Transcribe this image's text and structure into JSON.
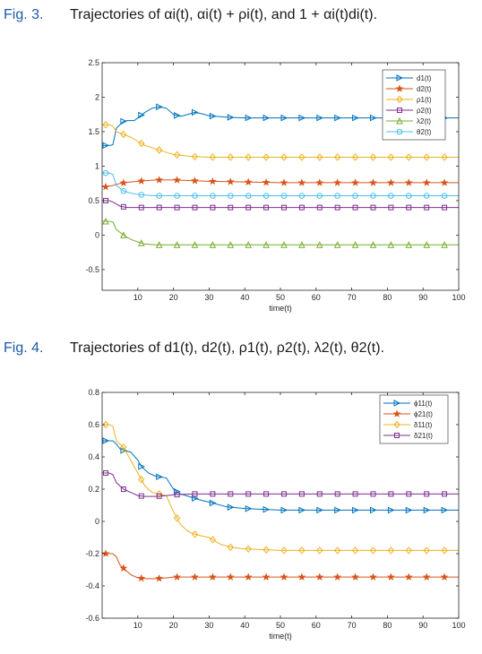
{
  "captions": [
    {
      "number": "Fig. 3.",
      "text": "Trajectories of αi(t), αi(t) + ρi(t), and 1 + αi(t)di(t)."
    },
    {
      "number": "Fig. 4.",
      "text": "Trajectories of d1(t), d2(t), ρ1(t), ρ2(t), λ2(t), θ2(t)."
    }
  ],
  "chart_data": [
    {
      "type": "line",
      "title": "",
      "xlabel": "time(t)",
      "ylabel": "",
      "xlim": [
        0,
        100
      ],
      "ylim": [
        -0.8,
        2.5
      ],
      "xticks": [
        "10",
        "20",
        "30",
        "40",
        "50",
        "60",
        "70",
        "80",
        "90",
        "100"
      ],
      "yticks": [
        "-0.5",
        "0",
        "0.5",
        "1",
        "1.5",
        "2",
        "2.5"
      ],
      "ytick_values": [
        -0.5,
        0,
        0.5,
        1,
        1.5,
        2,
        2.5
      ],
      "legend_position": "top-right",
      "grid": false,
      "series": [
        {
          "name": "d1(t)",
          "color": "#0072bd",
          "marker": "triangle-right",
          "x": [
            0,
            1,
            2,
            3,
            4,
            5,
            6,
            7,
            8,
            9,
            10,
            12,
            14,
            16,
            18,
            20,
            22,
            24,
            26,
            28,
            30,
            35,
            40,
            50,
            60,
            70,
            80,
            90,
            100
          ],
          "y": [
            1.3,
            1.3,
            1.3,
            1.31,
            1.55,
            1.6,
            1.65,
            1.66,
            1.66,
            1.66,
            1.7,
            1.78,
            1.84,
            1.86,
            1.84,
            1.75,
            1.72,
            1.75,
            1.78,
            1.76,
            1.73,
            1.71,
            1.7,
            1.7,
            1.7,
            1.7,
            1.7,
            1.7,
            1.7
          ],
          "marker_x": [
            1,
            6,
            11,
            16,
            21,
            26,
            31,
            36,
            41,
            46,
            51,
            56,
            61,
            66,
            71,
            76,
            81,
            86,
            91,
            96
          ]
        },
        {
          "name": "d2(t)",
          "color": "#d95319",
          "marker": "star",
          "x": [
            0,
            1,
            3,
            5,
            8,
            10,
            15,
            20,
            25,
            30,
            40,
            50,
            60,
            70,
            80,
            90,
            100
          ],
          "y": [
            0.7,
            0.7,
            0.72,
            0.75,
            0.77,
            0.78,
            0.8,
            0.8,
            0.79,
            0.78,
            0.77,
            0.76,
            0.76,
            0.76,
            0.76,
            0.76,
            0.76
          ],
          "marker_x": [
            1,
            6,
            11,
            16,
            21,
            26,
            31,
            36,
            41,
            46,
            51,
            56,
            61,
            66,
            71,
            76,
            81,
            86,
            91,
            96
          ]
        },
        {
          "name": "ρ1(t)",
          "color": "#edb120",
          "marker": "diamond",
          "x": [
            0,
            1,
            2,
            3,
            4,
            5,
            6,
            8,
            10,
            12,
            15,
            18,
            20,
            25,
            30,
            40,
            50,
            60,
            70,
            80,
            90,
            100
          ],
          "y": [
            1.6,
            1.6,
            1.6,
            1.58,
            1.5,
            1.48,
            1.46,
            1.42,
            1.36,
            1.3,
            1.25,
            1.2,
            1.17,
            1.14,
            1.13,
            1.13,
            1.13,
            1.13,
            1.13,
            1.13,
            1.13,
            1.13
          ],
          "marker_x": [
            1,
            6,
            11,
            16,
            21,
            26,
            31,
            36,
            41,
            46,
            51,
            56,
            61,
            66,
            71,
            76,
            81,
            86,
            91,
            96
          ]
        },
        {
          "name": "ρ2(t)",
          "color": "#7e2f8e",
          "marker": "square",
          "x": [
            0,
            1,
            2,
            3,
            5,
            7,
            10,
            15,
            20,
            30,
            50,
            70,
            100
          ],
          "y": [
            0.5,
            0.5,
            0.5,
            0.48,
            0.42,
            0.4,
            0.4,
            0.4,
            0.4,
            0.4,
            0.4,
            0.4,
            0.4
          ],
          "marker_x": [
            1,
            6,
            11,
            16,
            21,
            26,
            31,
            36,
            41,
            46,
            51,
            56,
            61,
            66,
            71,
            76,
            81,
            86,
            91,
            96
          ]
        },
        {
          "name": "λ2(t)",
          "color": "#77ac30",
          "marker": "triangle-up",
          "x": [
            0,
            1,
            2,
            3,
            4,
            5,
            6,
            8,
            10,
            12,
            15,
            20,
            25,
            30,
            40,
            50,
            60,
            70,
            80,
            90,
            100
          ],
          "y": [
            0.2,
            0.2,
            0.2,
            0.19,
            0.08,
            0.04,
            0.0,
            -0.06,
            -0.1,
            -0.13,
            -0.14,
            -0.14,
            -0.14,
            -0.14,
            -0.14,
            -0.14,
            -0.14,
            -0.14,
            -0.14,
            -0.14,
            -0.14
          ],
          "marker_x": [
            1,
            6,
            11,
            16,
            21,
            26,
            31,
            36,
            41,
            46,
            51,
            56,
            61,
            66,
            71,
            76,
            81,
            86,
            91,
            96
          ]
        },
        {
          "name": "θ2(t)",
          "color": "#4dbeee",
          "marker": "circle",
          "x": [
            0,
            1,
            2,
            3,
            4,
            5,
            6,
            8,
            10,
            12,
            15,
            20,
            25,
            30,
            40,
            50,
            60,
            70,
            80,
            90,
            100
          ],
          "y": [
            0.9,
            0.9,
            0.9,
            0.88,
            0.72,
            0.68,
            0.64,
            0.61,
            0.59,
            0.58,
            0.57,
            0.57,
            0.57,
            0.57,
            0.57,
            0.57,
            0.57,
            0.57,
            0.57,
            0.57,
            0.57
          ],
          "marker_x": [
            1,
            6,
            11,
            16,
            21,
            26,
            31,
            36,
            41,
            46,
            51,
            56,
            61,
            66,
            71,
            76,
            81,
            86,
            91,
            96
          ]
        }
      ]
    },
    {
      "type": "line",
      "title": "",
      "xlabel": "time(t)",
      "ylabel": "",
      "xlim": [
        0,
        100
      ],
      "ylim": [
        -0.6,
        0.8
      ],
      "xticks": [
        "10",
        "20",
        "30",
        "40",
        "50",
        "60",
        "70",
        "80",
        "90",
        "100"
      ],
      "yticks": [
        "-0.6",
        "-0.4",
        "-0.2",
        "0",
        "0.2",
        "0.4",
        "0.6",
        "0.8"
      ],
      "ytick_values": [
        -0.6,
        -0.4,
        -0.2,
        0,
        0.2,
        0.4,
        0.6,
        0.8
      ],
      "legend_position": "top-right",
      "grid": false,
      "series": [
        {
          "name": "ϕ11(t)",
          "color": "#0072bd",
          "marker": "triangle-right",
          "x": [
            0,
            1,
            2,
            3,
            4,
            5,
            6,
            8,
            10,
            11,
            13,
            15,
            18,
            20,
            22,
            25,
            28,
            30,
            35,
            40,
            50,
            60,
            70,
            80,
            90,
            100
          ],
          "y": [
            0.5,
            0.5,
            0.5,
            0.5,
            0.48,
            0.45,
            0.44,
            0.43,
            0.38,
            0.34,
            0.3,
            0.28,
            0.27,
            0.2,
            0.17,
            0.15,
            0.13,
            0.12,
            0.09,
            0.08,
            0.07,
            0.07,
            0.07,
            0.07,
            0.07,
            0.07
          ],
          "marker_x": [
            1,
            6,
            11,
            16,
            21,
            26,
            31,
            36,
            41,
            46,
            51,
            56,
            61,
            66,
            71,
            76,
            81,
            86,
            91,
            96
          ]
        },
        {
          "name": "ϕ21(t)",
          "color": "#d95319",
          "marker": "star",
          "x": [
            0,
            1,
            2,
            3,
            4,
            5,
            6,
            8,
            10,
            12,
            15,
            18,
            20,
            25,
            30,
            40,
            50,
            60,
            70,
            80,
            90,
            100
          ],
          "y": [
            -0.2,
            -0.2,
            -0.2,
            -0.2,
            -0.22,
            -0.27,
            -0.29,
            -0.33,
            -0.35,
            -0.355,
            -0.355,
            -0.35,
            -0.345,
            -0.345,
            -0.345,
            -0.345,
            -0.345,
            -0.345,
            -0.345,
            -0.345,
            -0.345,
            -0.345
          ],
          "marker_x": [
            1,
            6,
            11,
            16,
            21,
            26,
            31,
            36,
            41,
            46,
            51,
            56,
            61,
            66,
            71,
            76,
            81,
            86,
            91,
            96
          ]
        },
        {
          "name": "δ11(t)",
          "color": "#edb120",
          "marker": "diamond",
          "x": [
            0,
            1,
            2,
            3,
            4,
            5,
            6,
            8,
            10,
            12,
            14,
            16,
            18,
            20,
            22,
            24,
            26,
            28,
            30,
            33,
            36,
            40,
            50,
            60,
            70,
            80,
            90,
            100
          ],
          "y": [
            0.6,
            0.6,
            0.6,
            0.59,
            0.5,
            0.48,
            0.46,
            0.38,
            0.3,
            0.22,
            0.18,
            0.17,
            0.16,
            0.06,
            -0.02,
            -0.06,
            -0.08,
            -0.09,
            -0.1,
            -0.14,
            -0.16,
            -0.17,
            -0.18,
            -0.18,
            -0.18,
            -0.18,
            -0.18,
            -0.18
          ],
          "marker_x": [
            1,
            6,
            11,
            16,
            21,
            26,
            31,
            36,
            41,
            46,
            51,
            56,
            61,
            66,
            71,
            76,
            81,
            86,
            91,
            96
          ]
        },
        {
          "name": "δ21(t)",
          "color": "#7e2f8e",
          "marker": "square",
          "x": [
            0,
            1,
            2,
            3,
            4,
            5,
            6,
            8,
            10,
            12,
            15,
            18,
            20,
            25,
            30,
            40,
            50,
            60,
            70,
            80,
            90,
            100
          ],
          "y": [
            0.3,
            0.3,
            0.3,
            0.29,
            0.24,
            0.22,
            0.2,
            0.18,
            0.16,
            0.155,
            0.155,
            0.16,
            0.165,
            0.17,
            0.17,
            0.17,
            0.17,
            0.17,
            0.17,
            0.17,
            0.17,
            0.17
          ],
          "marker_x": [
            1,
            6,
            11,
            16,
            21,
            26,
            31,
            36,
            41,
            46,
            51,
            56,
            61,
            66,
            71,
            76,
            81,
            86,
            91,
            96
          ]
        }
      ]
    }
  ]
}
